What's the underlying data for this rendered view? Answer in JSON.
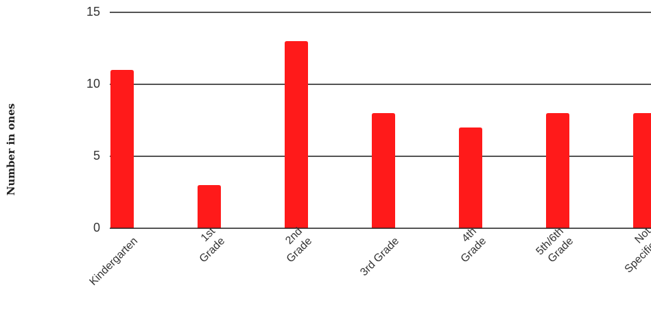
{
  "chart_data": {
    "type": "bar",
    "categories": [
      "Kindergarten",
      "1st Grade",
      "2nd Grade",
      "3rd Grade",
      "4th Grade",
      "5th/6th Grade",
      "Not Specified"
    ],
    "category_lines": [
      [
        "Kindergarten"
      ],
      [
        "1st",
        "Grade"
      ],
      [
        "2nd",
        "Grade"
      ],
      [
        "3rd Grade"
      ],
      [
        "4th",
        "Grade"
      ],
      [
        "5th/6th",
        "Grade"
      ],
      [
        "Not",
        "Specified"
      ]
    ],
    "values": [
      11,
      3,
      13,
      8,
      7,
      8,
      8
    ],
    "title": "",
    "xlabel": "",
    "ylabel": "Number in ones",
    "ylim": [
      0,
      15
    ],
    "yticks": [
      0,
      5,
      10,
      15
    ],
    "grid": true,
    "bar_color": "#ff1a1a",
    "grid_color": "#1a1a1a"
  }
}
